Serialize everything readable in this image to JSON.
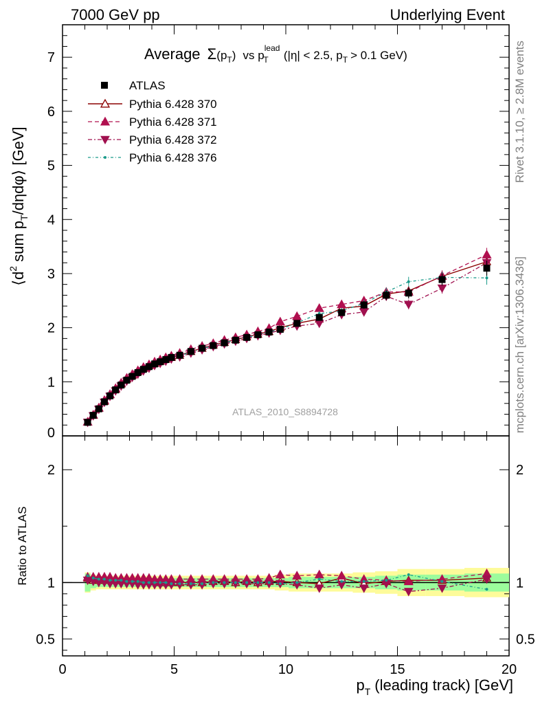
{
  "header": {
    "left": "7000 GeV pp",
    "right": "Underlying Event"
  },
  "side_labels": {
    "rivet": "Rivet 3.1.10, ≥ 2.8M events",
    "mcplots": "mcplots.cern.ch [arXiv:1306.3436]"
  },
  "chart_data": {
    "type": "scatter",
    "title": "Average Σ(p_T) vs p_T^lead (|η| < 2.5, p_T > 0.1 GeV)",
    "title_parts": {
      "prefix": "Average",
      "sigma": "Σ",
      "arg_open": "(p",
      "arg_sub": "T",
      "arg_close": ")",
      "vs": "vs p",
      "vs_sup": "lead",
      "vs_sub": "T",
      "cut": "(|η| < 2.5, p",
      "cut_sub": "T",
      "cut_end": "> 0.1 GeV)"
    },
    "analysis_label": "ATLAS_2010_S8894728",
    "xlabel": "p_T (leading track) [GeV]",
    "xlabel_parts": {
      "main": "p",
      "sub": "T",
      "rest": "(leading track) [GeV]"
    },
    "ylabel": "⟨d² sum p_T/dηdφ⟩ [GeV]",
    "ylabel_parts": {
      "a": "⟨d",
      "sup": "2",
      "b": " sum p",
      "sub": "T",
      "c": "/dηdφ⟩ [GeV]"
    },
    "ratio_ylabel": "Ratio to ATLAS",
    "xlim": [
      0,
      20
    ],
    "ylim": [
      0,
      7.6
    ],
    "ratio_ylim": [
      0.35,
      2.3
    ],
    "xticks": [
      0,
      5,
      10,
      15,
      20
    ],
    "yticks": [
      0,
      1,
      2,
      3,
      4,
      5,
      6,
      7
    ],
    "ratio_ticks": [
      0.5,
      1,
      2
    ],
    "legend_position": "top-left",
    "x": [
      1.125,
      1.375,
      1.625,
      1.875,
      2.125,
      2.375,
      2.625,
      2.875,
      3.125,
      3.375,
      3.625,
      3.875,
      4.125,
      4.375,
      4.625,
      4.875,
      5.25,
      5.75,
      6.25,
      6.75,
      7.25,
      7.75,
      8.25,
      8.75,
      9.25,
      9.75,
      10.5,
      11.5,
      12.5,
      13.5,
      14.5,
      15.5,
      17.0,
      19.0
    ],
    "series": [
      {
        "name": "ATLAS",
        "color": "#000000",
        "values": [
          0.25,
          0.38,
          0.5,
          0.63,
          0.74,
          0.85,
          0.94,
          1.03,
          1.1,
          1.17,
          1.23,
          1.28,
          1.33,
          1.37,
          1.41,
          1.45,
          1.49,
          1.56,
          1.62,
          1.67,
          1.72,
          1.77,
          1.82,
          1.87,
          1.92,
          1.97,
          2.08,
          2.19,
          2.28,
          2.42,
          2.6,
          2.64,
          2.89,
          3.1
        ],
        "errors": [
          0.01,
          0.01,
          0.01,
          0.01,
          0.01,
          0.01,
          0.01,
          0.01,
          0.01,
          0.01,
          0.01,
          0.01,
          0.01,
          0.01,
          0.01,
          0.02,
          0.02,
          0.02,
          0.02,
          0.02,
          0.02,
          0.02,
          0.03,
          0.03,
          0.03,
          0.03,
          0.04,
          0.05,
          0.06,
          0.07,
          0.09,
          0.1,
          0.11,
          0.14
        ]
      },
      {
        "name": "Pythia 6.428 370",
        "color": "#8b0000",
        "values": [
          0.26,
          0.38,
          0.51,
          0.64,
          0.76,
          0.86,
          0.96,
          1.05,
          1.12,
          1.19,
          1.25,
          1.3,
          1.34,
          1.38,
          1.42,
          1.45,
          1.49,
          1.56,
          1.62,
          1.68,
          1.73,
          1.78,
          1.83,
          1.88,
          1.93,
          2.0,
          2.08,
          2.16,
          2.36,
          2.4,
          2.62,
          2.68,
          2.95,
          3.22
        ],
        "ratio": [
          1.04,
          1.02,
          1.02,
          1.02,
          1.02,
          1.02,
          1.02,
          1.02,
          1.02,
          1.02,
          1.01,
          1.01,
          1.01,
          1.0,
          1.0,
          1.0,
          1.0,
          1.0,
          1.0,
          1.01,
          1.01,
          1.0,
          1.01,
          1.0,
          1.01,
          1.01,
          1.0,
          0.99,
          1.04,
          0.99,
          1.01,
          1.02,
          1.02,
          1.04
        ]
      },
      {
        "name": "Pythia 6.428 371",
        "color": "#b0104f",
        "values": [
          0.26,
          0.39,
          0.52,
          0.66,
          0.77,
          0.88,
          0.98,
          1.07,
          1.14,
          1.21,
          1.27,
          1.32,
          1.37,
          1.41,
          1.45,
          1.48,
          1.53,
          1.6,
          1.66,
          1.71,
          1.77,
          1.82,
          1.87,
          1.93,
          1.99,
          2.11,
          2.21,
          2.36,
          2.43,
          2.5,
          2.66,
          2.66,
          2.96,
          3.35
        ],
        "ratio": [
          1.05,
          1.05,
          1.05,
          1.05,
          1.05,
          1.04,
          1.04,
          1.04,
          1.04,
          1.04,
          1.04,
          1.04,
          1.03,
          1.03,
          1.03,
          1.03,
          1.03,
          1.03,
          1.03,
          1.03,
          1.03,
          1.03,
          1.03,
          1.03,
          1.04,
          1.07,
          1.06,
          1.07,
          1.06,
          1.03,
          1.02,
          1.01,
          1.03,
          1.08
        ]
      },
      {
        "name": "Pythia 6.428 372",
        "color": "#a0104f",
        "values": [
          0.25,
          0.37,
          0.49,
          0.62,
          0.73,
          0.83,
          0.92,
          1.01,
          1.08,
          1.14,
          1.2,
          1.25,
          1.3,
          1.34,
          1.38,
          1.42,
          1.46,
          1.53,
          1.59,
          1.65,
          1.7,
          1.75,
          1.8,
          1.85,
          1.9,
          1.95,
          2.03,
          2.08,
          2.24,
          2.29,
          2.58,
          2.43,
          2.73,
          3.2
        ],
        "ratio": [
          1.02,
          1.01,
          1.0,
          1.0,
          0.99,
          0.99,
          0.99,
          0.99,
          0.99,
          0.98,
          0.98,
          0.98,
          0.98,
          0.98,
          0.98,
          0.98,
          0.98,
          0.98,
          0.98,
          0.99,
          0.99,
          0.99,
          0.99,
          0.99,
          0.99,
          0.99,
          0.98,
          0.95,
          0.98,
          0.95,
          0.99,
          0.92,
          0.95,
          1.03
        ]
      },
      {
        "name": "Pythia 6.428 376",
        "color": "#1a9a8a",
        "values": [
          0.26,
          0.39,
          0.51,
          0.64,
          0.75,
          0.86,
          0.95,
          1.04,
          1.11,
          1.18,
          1.24,
          1.29,
          1.33,
          1.37,
          1.41,
          1.44,
          1.48,
          1.55,
          1.61,
          1.67,
          1.72,
          1.77,
          1.82,
          1.87,
          1.92,
          1.97,
          2.09,
          2.26,
          2.31,
          2.45,
          2.66,
          2.85,
          2.93,
          2.92
        ],
        "ratio": [
          1.06,
          1.04,
          1.03,
          1.03,
          1.02,
          1.02,
          1.02,
          1.01,
          1.01,
          1.01,
          1.0,
          1.0,
          1.0,
          1.0,
          1.0,
          0.99,
          0.99,
          0.99,
          0.99,
          1.0,
          1.0,
          1.0,
          1.0,
          1.0,
          1.0,
          0.99,
          1.0,
          1.03,
          1.01,
          1.01,
          1.02,
          1.07,
          1.01,
          0.94
        ]
      }
    ],
    "ratio_bands": {
      "green": [
        0.08,
        0.05,
        0.04,
        0.04,
        0.04,
        0.04,
        0.04,
        0.04,
        0.04,
        0.04,
        0.04,
        0.04,
        0.04,
        0.04,
        0.04,
        0.04,
        0.04,
        0.04,
        0.04,
        0.04,
        0.04,
        0.04,
        0.04,
        0.04,
        0.04,
        0.04,
        0.05,
        0.05,
        0.05,
        0.05,
        0.06,
        0.07,
        0.07,
        0.08
      ],
      "yellow": [
        0.09,
        0.07,
        0.06,
        0.06,
        0.06,
        0.06,
        0.06,
        0.06,
        0.06,
        0.06,
        0.06,
        0.06,
        0.06,
        0.06,
        0.06,
        0.06,
        0.06,
        0.06,
        0.06,
        0.06,
        0.06,
        0.06,
        0.06,
        0.06,
        0.06,
        0.07,
        0.08,
        0.08,
        0.08,
        0.09,
        0.1,
        0.12,
        0.12,
        0.13
      ]
    },
    "grid": false
  }
}
